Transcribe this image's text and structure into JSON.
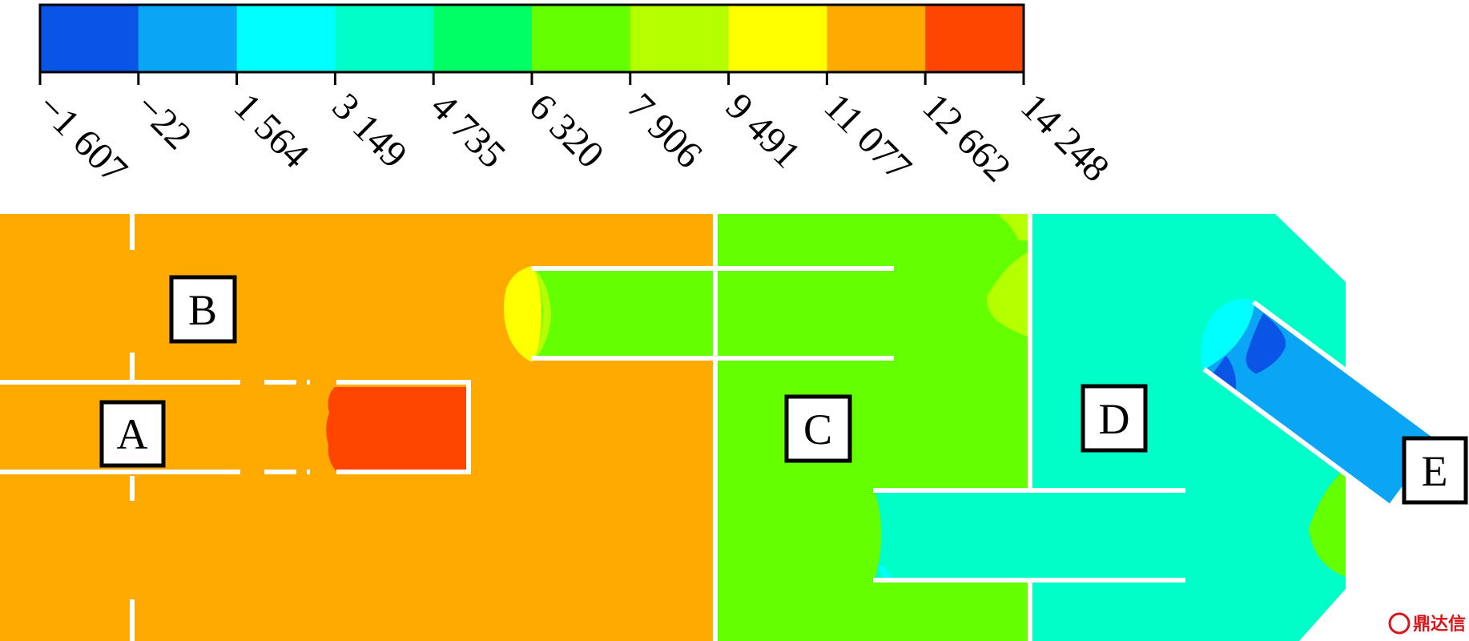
{
  "colorbar": {
    "ticks": [
      "−1 607",
      "−22",
      "1 564",
      "3 149",
      "4 735",
      "6 320",
      "7 906",
      "9 491",
      "11 077",
      "12 662",
      "14 248"
    ],
    "colors": [
      "#0a55e6",
      "#0aa5f5",
      "#00ffff",
      "#00ffc8",
      "#00ff64",
      "#64ff00",
      "#b4ff00",
      "#ffff00",
      "#ffaa00",
      "#ff4600"
    ]
  },
  "zones": {
    "orange": "#ffaa00",
    "red": "#ff4600",
    "green": "#64ff00",
    "lime": "#b4ff00",
    "yellow": "#ffff00",
    "teal": "#00ffc8",
    "cyan": "#00ffff",
    "blue": "#0aa5f5",
    "deep_blue": "#0a55e6"
  },
  "labels": {
    "a": "A",
    "b": "B",
    "c": "C",
    "d": "D",
    "e": "E"
  },
  "watermark": {
    "text": "鼎达信"
  }
}
